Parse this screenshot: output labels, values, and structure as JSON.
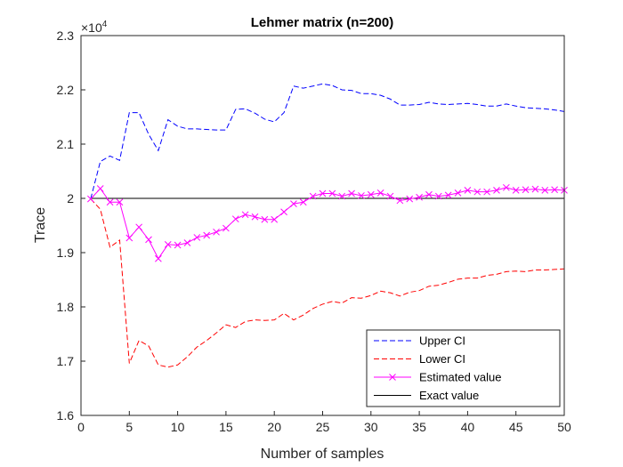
{
  "chart_data": {
    "type": "line",
    "title": "Lehmer matrix (n=200)",
    "xlabel": "Number of samples",
    "ylabel": "Trace",
    "y_exponent_label": "×10",
    "y_exponent_power": "4",
    "xlim": [
      0,
      50
    ],
    "ylim": [
      1.6,
      2.3
    ],
    "x_ticks": [
      0,
      5,
      10,
      15,
      20,
      25,
      30,
      35,
      40,
      45,
      50
    ],
    "y_ticks": [
      1.6,
      1.7,
      1.8,
      1.9,
      2,
      2.1,
      2.2,
      2.3
    ],
    "y_tick_labels": [
      "1.6",
      "1.7",
      "1.8",
      "1.9",
      "2",
      "2.1",
      "2.2",
      "2.3"
    ],
    "grid": false,
    "legend_position": "bottom-right",
    "x": [
      1,
      2,
      3,
      4,
      5,
      6,
      7,
      8,
      9,
      10,
      11,
      12,
      13,
      14,
      15,
      16,
      17,
      18,
      19,
      20,
      21,
      22,
      23,
      24,
      25,
      26,
      27,
      28,
      29,
      30,
      31,
      32,
      33,
      34,
      35,
      36,
      37,
      38,
      39,
      40,
      41,
      42,
      43,
      44,
      45,
      46,
      47,
      48,
      49,
      50
    ],
    "series": [
      {
        "name": "Upper CI",
        "color": "#0000ff",
        "style": "dashed",
        "marker": "none",
        "values": [
          1.999,
          2.068,
          2.078,
          2.07,
          2.158,
          2.158,
          2.118,
          2.088,
          2.145,
          2.133,
          2.128,
          2.128,
          2.127,
          2.126,
          2.126,
          2.164,
          2.165,
          2.157,
          2.146,
          2.141,
          2.158,
          2.207,
          2.203,
          2.207,
          2.211,
          2.208,
          2.2,
          2.199,
          2.193,
          2.193,
          2.19,
          2.183,
          2.172,
          2.172,
          2.173,
          2.177,
          2.174,
          2.173,
          2.174,
          2.175,
          2.173,
          2.17,
          2.17,
          2.174,
          2.17,
          2.167,
          2.166,
          2.165,
          2.163,
          2.16
        ]
      },
      {
        "name": "Lower CI",
        "color": "#ff0000",
        "style": "dashed",
        "marker": "none",
        "values": [
          1.999,
          1.98,
          1.91,
          1.923,
          1.696,
          1.738,
          1.728,
          1.693,
          1.689,
          1.693,
          1.708,
          1.726,
          1.738,
          1.752,
          1.767,
          1.762,
          1.773,
          1.776,
          1.775,
          1.776,
          1.788,
          1.776,
          1.785,
          1.797,
          1.805,
          1.81,
          1.807,
          1.817,
          1.816,
          1.821,
          1.829,
          1.826,
          1.82,
          1.827,
          1.83,
          1.838,
          1.84,
          1.845,
          1.851,
          1.853,
          1.853,
          1.858,
          1.86,
          1.865,
          1.866,
          1.865,
          1.868,
          1.868,
          1.869,
          1.87
        ]
      },
      {
        "name": "Estimated value",
        "color": "#ff00ff",
        "style": "solid",
        "marker": "x",
        "values": [
          1.999,
          2.018,
          1.993,
          1.993,
          1.927,
          1.947,
          1.924,
          1.889,
          1.915,
          1.914,
          1.918,
          1.928,
          1.932,
          1.938,
          1.945,
          1.962,
          1.97,
          1.966,
          1.961,
          1.961,
          1.975,
          1.99,
          1.993,
          2.004,
          2.009,
          2.009,
          2.004,
          2.009,
          2.005,
          2.007,
          2.01,
          2.004,
          1.996,
          1.999,
          2.002,
          2.007,
          2.004,
          2.006,
          2.01,
          2.015,
          2.012,
          2.012,
          2.015,
          2.02,
          2.015,
          2.016,
          2.017,
          2.015,
          2.016,
          2.015
        ]
      },
      {
        "name": "Exact value",
        "color": "#000000",
        "style": "solid",
        "marker": "none",
        "values": [
          2,
          2,
          2,
          2,
          2,
          2,
          2,
          2,
          2,
          2,
          2,
          2,
          2,
          2,
          2,
          2,
          2,
          2,
          2,
          2,
          2,
          2,
          2,
          2,
          2,
          2,
          2,
          2,
          2,
          2,
          2,
          2,
          2,
          2,
          2,
          2,
          2,
          2,
          2,
          2,
          2,
          2,
          2,
          2,
          2,
          2,
          2,
          2,
          2,
          2
        ]
      }
    ]
  }
}
